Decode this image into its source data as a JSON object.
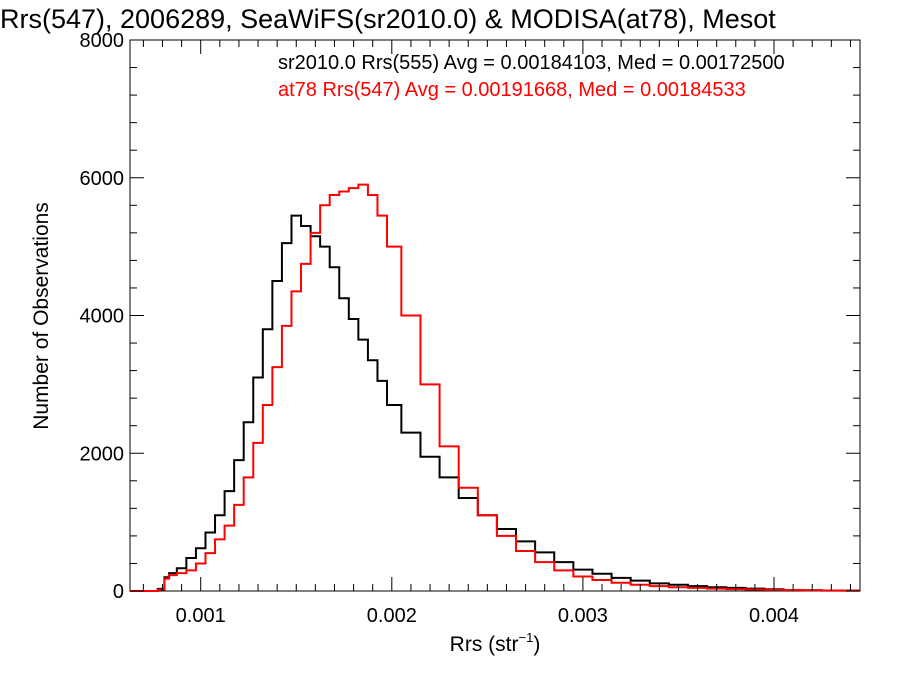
{
  "chart_data": {
    "type": "line",
    "title": "Rrs(547), 2006289, SeaWiFS(sr2010.0) & MODISA(at78), Mesot",
    "xlabel": "Rrs (str",
    "xlabel_sup": "−1",
    "xlabel_close": ")",
    "ylabel": "Number of Observations",
    "xlim": [
      0.00063,
      0.00445
    ],
    "ylim": [
      0,
      8000
    ],
    "x_ticks": [
      0.001,
      0.002,
      0.003,
      0.004
    ],
    "x_tick_labels": [
      "0.001",
      "0.002",
      "0.003",
      "0.004"
    ],
    "y_ticks": [
      0,
      2000,
      4000,
      6000,
      8000
    ],
    "y_tick_labels": [
      "0",
      "2000",
      "4000",
      "6000",
      "8000"
    ],
    "grid": false,
    "annotations": [
      {
        "text": "sr2010.0 Rrs(555) Avg = 0.00184103, Med = 0.00172500",
        "color": "#000000"
      },
      {
        "text": "at78 Rrs(547) Avg = 0.00191668, Med = 0.00184533",
        "color": "#ff0000"
      }
    ],
    "series": [
      {
        "color": "#000000",
        "x": [
          0.00063,
          0.00075,
          0.0008,
          0.00082,
          0.00085,
          0.0009,
          0.00095,
          0.001,
          0.00105,
          0.0011,
          0.00115,
          0.0012,
          0.00125,
          0.0013,
          0.00135,
          0.0014,
          0.00145,
          0.0015,
          0.00155,
          0.0016,
          0.00165,
          0.0017,
          0.00175,
          0.0018,
          0.00185,
          0.0019,
          0.00195,
          0.002,
          0.0021,
          0.0022,
          0.0023,
          0.0024,
          0.0025,
          0.0026,
          0.0027,
          0.0028,
          0.0029,
          0.003,
          0.0031,
          0.0032,
          0.0033,
          0.0034,
          0.0035,
          0.0036,
          0.0037,
          0.0038,
          0.0039,
          0.004,
          0.0041,
          0.0042,
          0.0043,
          0.0044,
          0.00445
        ],
        "y": [
          0,
          0,
          30,
          200,
          260,
          330,
          480,
          620,
          850,
          1100,
          1450,
          1900,
          2450,
          3100,
          3800,
          4500,
          5050,
          5450,
          5300,
          5150,
          5000,
          4700,
          4250,
          3950,
          3650,
          3350,
          3050,
          2700,
          2300,
          1950,
          1650,
          1350,
          1100,
          900,
          720,
          560,
          420,
          310,
          250,
          190,
          150,
          110,
          90,
          70,
          55,
          45,
          35,
          25,
          15,
          10,
          5,
          5,
          5
        ]
      },
      {
        "color": "#ff0000",
        "x": [
          0.00063,
          0.00075,
          0.0008,
          0.00082,
          0.00085,
          0.0009,
          0.00095,
          0.001,
          0.00105,
          0.0011,
          0.00115,
          0.0012,
          0.00125,
          0.0013,
          0.00135,
          0.0014,
          0.00145,
          0.0015,
          0.00155,
          0.0016,
          0.00165,
          0.0017,
          0.00175,
          0.0018,
          0.00185,
          0.0019,
          0.00195,
          0.002,
          0.0021,
          0.0022,
          0.0023,
          0.0024,
          0.0025,
          0.0026,
          0.0027,
          0.0028,
          0.0029,
          0.003,
          0.0031,
          0.0032,
          0.0033,
          0.0034,
          0.0035,
          0.0036,
          0.0037,
          0.0038,
          0.0039,
          0.004,
          0.0041,
          0.0042,
          0.0043,
          0.0044,
          0.00445
        ],
        "y": [
          0,
          0,
          20,
          180,
          230,
          260,
          300,
          400,
          550,
          750,
          950,
          1250,
          1650,
          2150,
          2700,
          3250,
          3850,
          4350,
          4750,
          5200,
          5600,
          5750,
          5800,
          5850,
          5900,
          5750,
          5450,
          5000,
          4000,
          3000,
          2100,
          1500,
          1100,
          800,
          580,
          420,
          300,
          210,
          160,
          120,
          90,
          70,
          55,
          45,
          35,
          28,
          22,
          18,
          14,
          10,
          8,
          6,
          5
        ]
      }
    ]
  }
}
